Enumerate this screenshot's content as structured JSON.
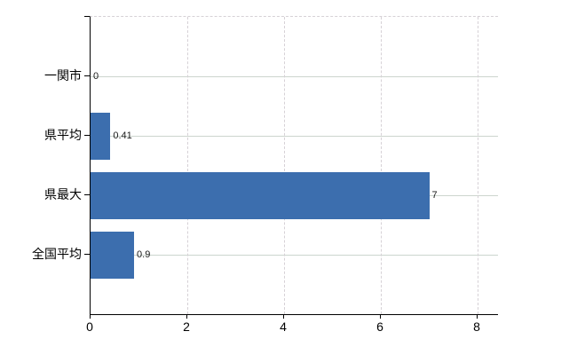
{
  "chart_data": {
    "type": "bar",
    "orientation": "horizontal",
    "title": "",
    "categories": [
      "一関市",
      "県平均",
      "県最大",
      "全国平均"
    ],
    "values": [
      0,
      0.41,
      7,
      0.9
    ],
    "value_labels": [
      "0",
      "0.41",
      "7",
      "0.9"
    ],
    "x_tick_values": [
      0,
      2,
      4,
      6,
      8
    ],
    "x_tick_labels": [
      "0",
      "2",
      "4",
      "6",
      "8"
    ],
    "xlim": [
      0,
      8.42
    ],
    "grid": true,
    "bar_color": "#3c6eae",
    "gridline_h_color": "#ccd5ce",
    "gridline_v_color": "#d6d1d6",
    "axis_color": "#000000"
  }
}
